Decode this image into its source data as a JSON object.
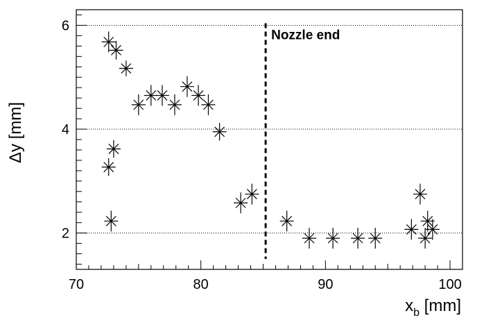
{
  "chart_data": {
    "type": "scatter",
    "title": "",
    "xlabel": "x",
    "xlabel_sub": "b",
    "xlabel_unit": "[mm]",
    "ylabel": "Δy [mm]",
    "xlim": [
      70,
      101
    ],
    "ylim": [
      1.3,
      6.3
    ],
    "xticks": [
      70,
      80,
      90,
      100
    ],
    "xtick_labels": [
      "70",
      "80",
      "90",
      "100"
    ],
    "yticks": [
      2,
      4,
      6
    ],
    "ytick_labels": [
      "2",
      "4",
      "6"
    ],
    "grid": "horizontal dotted at y = 2, 4, 6",
    "marker": "asterisk",
    "annotation": {
      "text": "Nozzle end",
      "x": 85.2
    },
    "points": [
      {
        "x": 72.6,
        "y": 5.68,
        "err": 0.2
      },
      {
        "x": 73.2,
        "y": 5.52,
        "err": 0.18
      },
      {
        "x": 74.0,
        "y": 5.17,
        "err": 0.15
      },
      {
        "x": 75.0,
        "y": 4.47,
        "err": 0.2
      },
      {
        "x": 76.0,
        "y": 4.65,
        "err": 0.2
      },
      {
        "x": 76.9,
        "y": 4.65,
        "err": 0.2
      },
      {
        "x": 77.9,
        "y": 4.47,
        "err": 0.2
      },
      {
        "x": 78.9,
        "y": 4.82,
        "err": 0.2
      },
      {
        "x": 79.8,
        "y": 4.65,
        "err": 0.2
      },
      {
        "x": 80.6,
        "y": 4.47,
        "err": 0.2
      },
      {
        "x": 81.5,
        "y": 3.95,
        "err": 0.17
      },
      {
        "x": 72.6,
        "y": 3.27,
        "err": 0.17
      },
      {
        "x": 73.0,
        "y": 3.62,
        "err": 0.17
      },
      {
        "x": 72.8,
        "y": 2.23,
        "err": 0.2
      },
      {
        "x": 83.2,
        "y": 2.58,
        "err": 0.2
      },
      {
        "x": 84.1,
        "y": 2.75,
        "err": 0.2
      },
      {
        "x": 86.9,
        "y": 2.23,
        "err": 0.2
      },
      {
        "x": 88.7,
        "y": 1.9,
        "err": 0.2
      },
      {
        "x": 90.6,
        "y": 1.9,
        "err": 0.2
      },
      {
        "x": 92.6,
        "y": 1.9,
        "err": 0.2
      },
      {
        "x": 94.0,
        "y": 1.9,
        "err": 0.2
      },
      {
        "x": 96.9,
        "y": 2.07,
        "err": 0.2
      },
      {
        "x": 97.6,
        "y": 2.75,
        "err": 0.2
      },
      {
        "x": 98.0,
        "y": 1.9,
        "err": 0.2
      },
      {
        "x": 98.2,
        "y": 2.23,
        "err": 0.2
      },
      {
        "x": 98.6,
        "y": 2.07,
        "err": 0.2
      }
    ]
  }
}
